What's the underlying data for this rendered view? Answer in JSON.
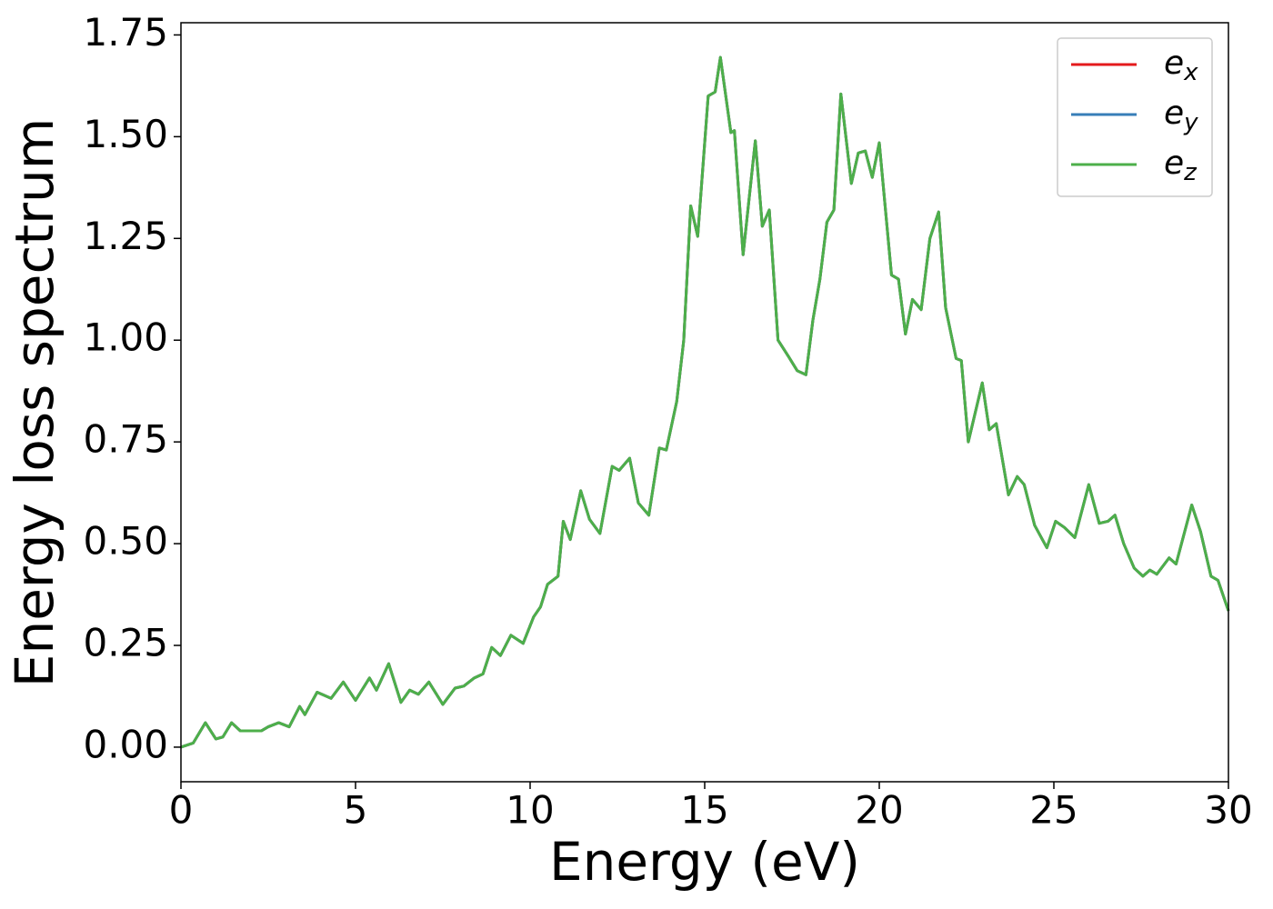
{
  "chart_data": {
    "type": "line",
    "xlabel": "Energy (eV)",
    "ylabel": "Energy loss spectrum",
    "x": [
      0,
      0.35,
      0.7,
      1.0,
      1.2,
      1.45,
      1.7,
      2.0,
      2.3,
      2.5,
      2.8,
      3.1,
      3.4,
      3.55,
      3.9,
      4.3,
      4.65,
      5.0,
      5.4,
      5.6,
      5.95,
      6.3,
      6.55,
      6.8,
      7.1,
      7.5,
      7.85,
      8.1,
      8.4,
      8.65,
      8.9,
      9.15,
      9.45,
      9.8,
      10.1,
      10.3,
      10.5,
      10.8,
      10.95,
      11.15,
      11.45,
      11.7,
      12.0,
      12.35,
      12.55,
      12.85,
      13.1,
      13.4,
      13.7,
      13.9,
      14.2,
      14.4,
      14.6,
      14.8,
      15.1,
      15.3,
      15.45,
      15.75,
      15.85,
      16.1,
      16.45,
      16.65,
      16.85,
      17.1,
      17.4,
      17.65,
      17.9,
      18.1,
      18.3,
      18.5,
      18.7,
      18.9,
      19.2,
      19.4,
      19.6,
      19.8,
      20.0,
      20.35,
      20.55,
      20.75,
      20.95,
      21.2,
      21.45,
      21.7,
      21.9,
      22.2,
      22.35,
      22.55,
      22.95,
      23.15,
      23.35,
      23.7,
      23.95,
      24.15,
      24.45,
      24.8,
      25.05,
      25.3,
      25.6,
      26.0,
      26.3,
      26.55,
      26.75,
      27.0,
      27.3,
      27.55,
      27.75,
      27.95,
      28.3,
      28.5,
      28.95,
      29.2,
      29.5,
      29.7,
      30.0
    ],
    "series": [
      {
        "name": "ex",
        "color": "#e41a1c",
        "values": [
          0,
          0.01,
          0.06,
          0.02,
          0.025,
          0.06,
          0.04,
          0.04,
          0.04,
          0.05,
          0.06,
          0.05,
          0.1,
          0.08,
          0.135,
          0.12,
          0.16,
          0.115,
          0.17,
          0.14,
          0.205,
          0.11,
          0.14,
          0.13,
          0.16,
          0.105,
          0.145,
          0.15,
          0.17,
          0.18,
          0.245,
          0.225,
          0.275,
          0.255,
          0.32,
          0.345,
          0.4,
          0.42,
          0.555,
          0.51,
          0.63,
          0.56,
          0.525,
          0.69,
          0.68,
          0.71,
          0.6,
          0.57,
          0.735,
          0.73,
          0.85,
          1.0,
          1.33,
          1.255,
          1.6,
          1.61,
          1.695,
          1.51,
          1.515,
          1.21,
          1.49,
          1.28,
          1.32,
          1.0,
          0.96,
          0.925,
          0.915,
          1.05,
          1.15,
          1.29,
          1.32,
          1.605,
          1.385,
          1.46,
          1.465,
          1.4,
          1.485,
          1.16,
          1.15,
          1.015,
          1.1,
          1.075,
          1.25,
          1.315,
          1.08,
          0.955,
          0.95,
          0.75,
          0.895,
          0.78,
          0.795,
          0.62,
          0.665,
          0.645,
          0.545,
          0.49,
          0.555,
          0.54,
          0.515,
          0.645,
          0.55,
          0.555,
          0.57,
          0.5,
          0.44,
          0.42,
          0.435,
          0.425,
          0.465,
          0.45,
          0.595,
          0.53,
          0.42,
          0.41,
          0.335
        ]
      },
      {
        "name": "ey",
        "color": "#377eb8",
        "values": [
          0,
          0.01,
          0.06,
          0.02,
          0.025,
          0.06,
          0.04,
          0.04,
          0.04,
          0.05,
          0.06,
          0.05,
          0.1,
          0.08,
          0.135,
          0.12,
          0.16,
          0.115,
          0.17,
          0.14,
          0.205,
          0.11,
          0.14,
          0.13,
          0.16,
          0.105,
          0.145,
          0.15,
          0.17,
          0.18,
          0.245,
          0.225,
          0.275,
          0.255,
          0.32,
          0.345,
          0.4,
          0.42,
          0.555,
          0.51,
          0.63,
          0.56,
          0.525,
          0.69,
          0.68,
          0.71,
          0.6,
          0.57,
          0.735,
          0.73,
          0.85,
          1.0,
          1.33,
          1.255,
          1.6,
          1.61,
          1.695,
          1.51,
          1.515,
          1.21,
          1.49,
          1.28,
          1.32,
          1.0,
          0.96,
          0.925,
          0.915,
          1.05,
          1.15,
          1.29,
          1.32,
          1.605,
          1.385,
          1.46,
          1.465,
          1.4,
          1.485,
          1.16,
          1.15,
          1.015,
          1.1,
          1.075,
          1.25,
          1.315,
          1.08,
          0.955,
          0.95,
          0.75,
          0.895,
          0.78,
          0.795,
          0.62,
          0.665,
          0.645,
          0.545,
          0.49,
          0.555,
          0.54,
          0.515,
          0.645,
          0.55,
          0.555,
          0.57,
          0.5,
          0.44,
          0.42,
          0.435,
          0.425,
          0.465,
          0.45,
          0.595,
          0.53,
          0.42,
          0.41,
          0.335
        ]
      },
      {
        "name": "ez",
        "color": "#4daf4a",
        "values": [
          0,
          0.01,
          0.06,
          0.02,
          0.025,
          0.06,
          0.04,
          0.04,
          0.04,
          0.05,
          0.06,
          0.05,
          0.1,
          0.08,
          0.135,
          0.12,
          0.16,
          0.115,
          0.17,
          0.14,
          0.205,
          0.11,
          0.14,
          0.13,
          0.16,
          0.105,
          0.145,
          0.15,
          0.17,
          0.18,
          0.245,
          0.225,
          0.275,
          0.255,
          0.32,
          0.345,
          0.4,
          0.42,
          0.555,
          0.51,
          0.63,
          0.56,
          0.525,
          0.69,
          0.68,
          0.71,
          0.6,
          0.57,
          0.735,
          0.73,
          0.85,
          1.0,
          1.33,
          1.255,
          1.6,
          1.61,
          1.695,
          1.51,
          1.515,
          1.21,
          1.49,
          1.28,
          1.32,
          1.0,
          0.96,
          0.925,
          0.915,
          1.05,
          1.15,
          1.29,
          1.32,
          1.605,
          1.385,
          1.46,
          1.465,
          1.4,
          1.485,
          1.16,
          1.15,
          1.015,
          1.1,
          1.075,
          1.25,
          1.315,
          1.08,
          0.955,
          0.95,
          0.75,
          0.895,
          0.78,
          0.795,
          0.62,
          0.665,
          0.645,
          0.545,
          0.49,
          0.555,
          0.54,
          0.515,
          0.645,
          0.55,
          0.555,
          0.57,
          0.5,
          0.44,
          0.42,
          0.435,
          0.425,
          0.465,
          0.45,
          0.595,
          0.53,
          0.42,
          0.41,
          0.335
        ]
      }
    ],
    "xlim": [
      0,
      30
    ],
    "xticks": [
      0,
      5,
      10,
      15,
      20,
      25,
      30
    ],
    "ylim": [
      -0.085,
      1.78
    ],
    "yticks": [
      {
        "value": 0,
        "label": "0.00"
      },
      {
        "value": 0.25,
        "label": "0.25"
      },
      {
        "value": 0.5,
        "label": "0.50"
      },
      {
        "value": 0.75,
        "label": "0.75"
      },
      {
        "value": 1,
        "label": "1.00"
      },
      {
        "value": 1.25,
        "label": "1.25"
      },
      {
        "value": 1.5,
        "label": "1.50"
      },
      {
        "value": 1.75,
        "label": "1.75"
      }
    ],
    "grid": false,
    "legend": "upper right"
  }
}
